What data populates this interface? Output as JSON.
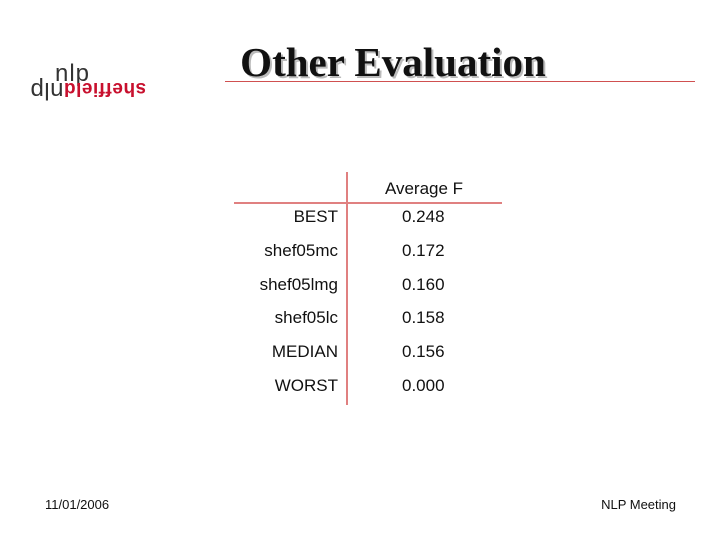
{
  "header": {
    "title": "Other Evaluation"
  },
  "logo": {
    "top": "nlp",
    "bottom_brand": "sheffield",
    "bottom_suffix": "nlp"
  },
  "table": {
    "columns": [
      "Average F"
    ],
    "rows": [
      [
        "BEST",
        "0.248"
      ],
      [
        "shef05mc",
        "0.172"
      ],
      [
        "shef05lmg",
        "0.160"
      ],
      [
        "shef05lc",
        "0.158"
      ],
      [
        "MEDIAN",
        "0.156"
      ],
      [
        "WORST",
        "0.000"
      ]
    ]
  },
  "footer": {
    "date": "11/01/2006",
    "text": "NLP Meeting"
  }
}
